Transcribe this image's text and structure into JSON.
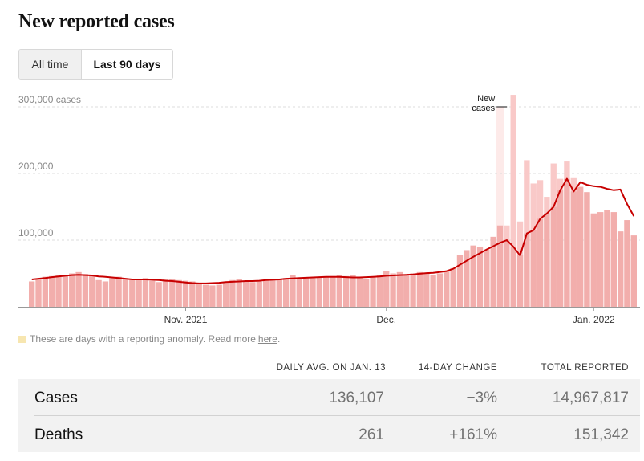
{
  "title": "New reported cases",
  "toggle": {
    "all_time": "All time",
    "last_90": "Last 90 days"
  },
  "chart_data": {
    "type": "bar",
    "title": "New reported cases",
    "ylim": [
      0,
      300000
    ],
    "y_ticks": [
      {
        "value": 100000,
        "label": "100,000"
      },
      {
        "value": 200000,
        "label": "200,000"
      },
      {
        "value": 300000,
        "label": "300,000 cases"
      }
    ],
    "x_ticks": [
      {
        "index": 23,
        "label": "Nov. 2021"
      },
      {
        "index": 53,
        "label": "Dec."
      },
      {
        "index": 84,
        "label": "Jan. 2022"
      }
    ],
    "anomaly_indices": [
      70
    ],
    "annotation": {
      "index": 71,
      "lines": [
        "New",
        "cases"
      ]
    },
    "series": [
      {
        "name": "Daily new cases",
        "values": [
          38000,
          42000,
          45000,
          46000,
          48000,
          48000,
          50000,
          52000,
          49000,
          47000,
          40000,
          38000,
          43000,
          45000,
          42000,
          40000,
          41000,
          43000,
          39000,
          37000,
          42000,
          41000,
          40000,
          39000,
          38000,
          36000,
          33000,
          32000,
          33000,
          36000,
          40000,
          42000,
          38000,
          37000,
          38000,
          40000,
          42000,
          41000,
          43000,
          47000,
          44000,
          43000,
          44000,
          45000,
          45000,
          46000,
          48000,
          46000,
          47000,
          43000,
          41000,
          45000,
          48000,
          53000,
          50000,
          52000,
          47000,
          50000,
          52000,
          51000,
          48000,
          50000,
          54000,
          58000,
          78000,
          85000,
          92000,
          90000,
          86000,
          105000,
          122000,
          122000,
          318000,
          128000,
          220000,
          185000,
          190000,
          165000,
          215000,
          192000,
          218000,
          193000,
          180000,
          172000,
          140000,
          142000,
          145000,
          142000,
          113000,
          130000,
          107000
        ]
      },
      {
        "name": "7-day average",
        "values": [
          41000,
          42000,
          43000,
          44500,
          45500,
          46500,
          47500,
          48000,
          47500,
          47000,
          45500,
          45000,
          44000,
          43000,
          42000,
          41000,
          41000,
          41000,
          40500,
          40000,
          39000,
          38500,
          37500,
          36500,
          35500,
          35000,
          35000,
          35500,
          36000,
          37000,
          37500,
          38000,
          38500,
          38500,
          39000,
          40000,
          40500,
          41000,
          42000,
          42500,
          43000,
          43500,
          44000,
          44500,
          45000,
          45000,
          45000,
          44500,
          44000,
          44000,
          44500,
          45000,
          45500,
          46500,
          47000,
          47500,
          48000,
          48500,
          49500,
          50500,
          51000,
          52000,
          53500,
          57000,
          63000,
          69000,
          75000,
          80500,
          86000,
          91000,
          96000,
          100000,
          90000,
          77000,
          110000,
          115000,
          132000,
          140000,
          150000,
          175000,
          192000,
          173000,
          187000,
          183000,
          181000,
          180000,
          177000,
          175000,
          176000,
          154000,
          136000
        ]
      }
    ]
  },
  "note": {
    "text": "These are days with a reporting anomaly. Read more",
    "link": "here",
    "end": "."
  },
  "table": {
    "headers": [
      "DAILY AVG. ON JAN. 13",
      "14-DAY CHANGE",
      "TOTAL REPORTED"
    ],
    "rows": [
      {
        "label": "Cases",
        "avg": "136,107",
        "change": "−3%",
        "total": "14,967,817"
      },
      {
        "label": "Deaths",
        "avg": "261",
        "change": "+161%",
        "total": "151,342"
      }
    ]
  },
  "colors": {
    "bar": "#f2aeac",
    "bar_recent": "#f9c9c8",
    "anomaly_band": "#fdeae9",
    "line": "#c70000",
    "grid": "#dcdcdc"
  }
}
